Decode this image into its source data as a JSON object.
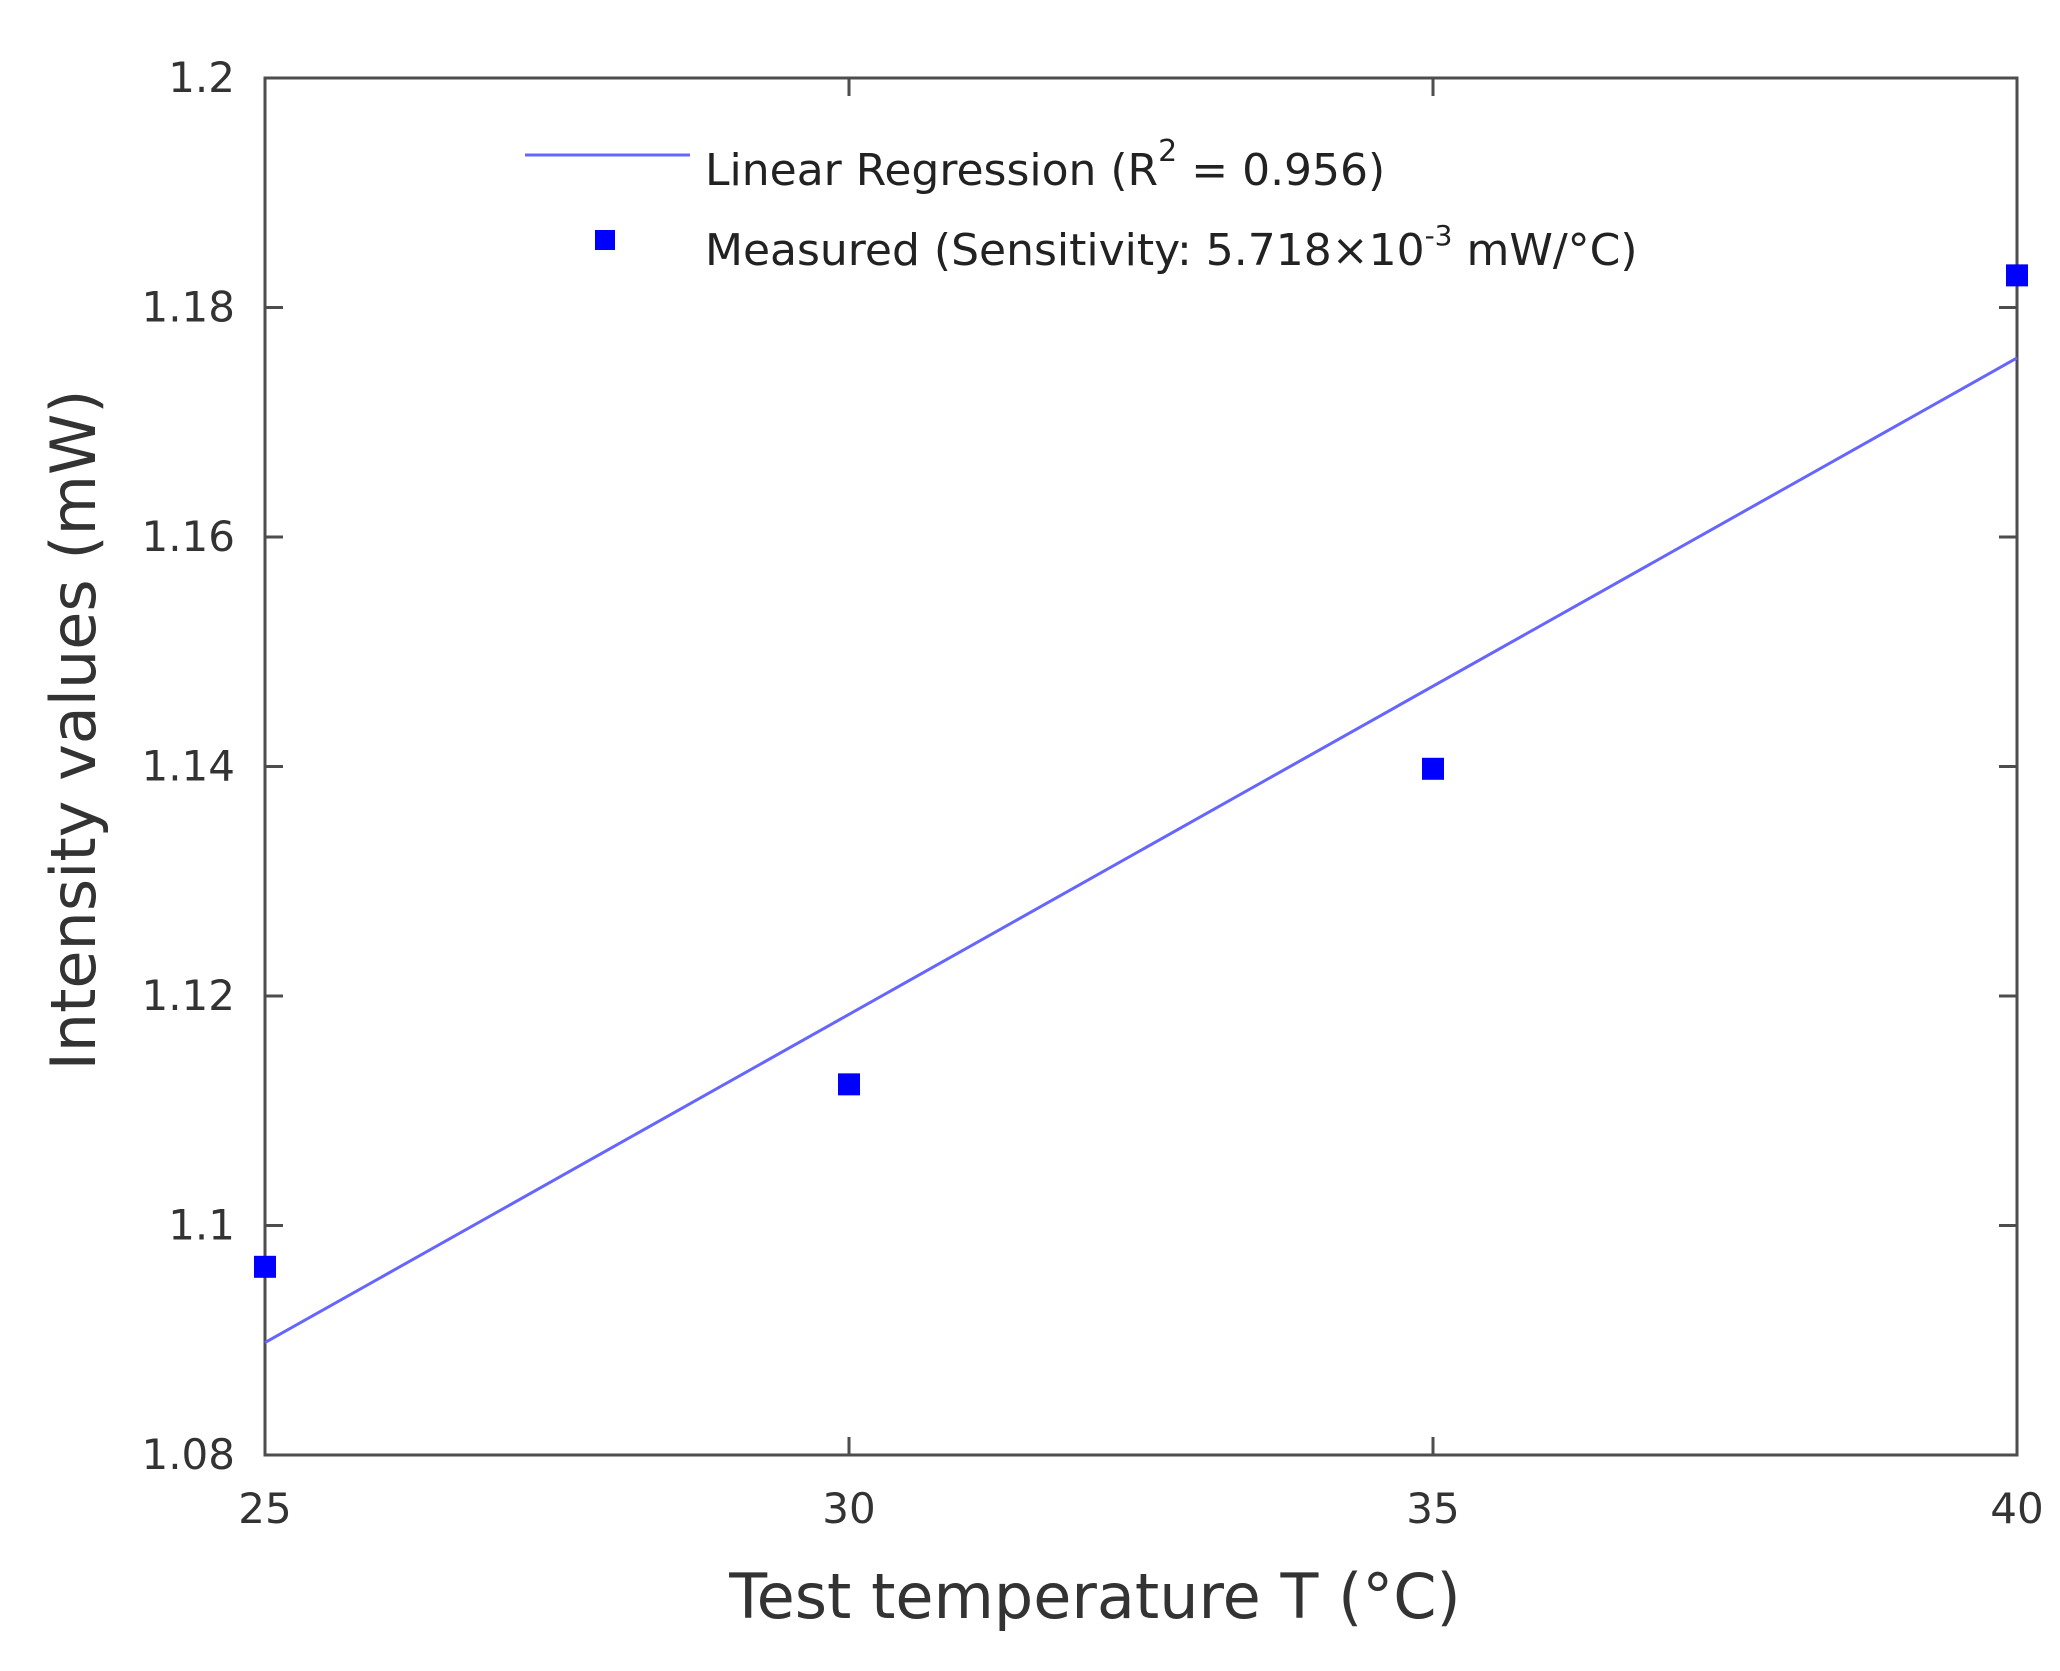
{
  "chart_data": {
    "type": "scatter",
    "title": "",
    "xlabel": "Test temperature T (°C)",
    "ylabel": "Intensity values (mW)",
    "xlim": [
      25,
      40
    ],
    "ylim": [
      1.08,
      1.2
    ],
    "x_ticks": [
      25,
      30,
      35,
      40
    ],
    "x_tick_labels": [
      "25",
      "30",
      "35",
      "40"
    ],
    "y_ticks": [
      1.08,
      1.1,
      1.12,
      1.14,
      1.16,
      1.18,
      1.2
    ],
    "y_tick_labels": [
      "1.08",
      "1.1",
      "1.12",
      "1.14",
      "1.16",
      "1.18",
      "1.2"
    ],
    "grid": false,
    "legend_position": "top",
    "colors": {
      "regression_line": "#6666ff",
      "measured_marker": "#0000ff",
      "axes": "#4d4d4d"
    },
    "series": [
      {
        "name": "Measured",
        "kind": "scatter",
        "marker": "square",
        "x": [
          25,
          30,
          35,
          40
        ],
        "y": [
          1.0964,
          1.1123,
          1.1398,
          1.1828
        ]
      },
      {
        "name": "Linear Regression",
        "kind": "line",
        "x": [
          25,
          40
        ],
        "y": [
          1.0898,
          1.1756
        ]
      }
    ],
    "legend": {
      "regression": {
        "prefix": "Linear Regression (R",
        "sup": "2",
        "suffix": " = 0.956)"
      },
      "measured": {
        "prefix": "Measured (Sensitivity: 5.718×10",
        "sup": "-3",
        "suffix": " mW/°C)"
      }
    }
  }
}
